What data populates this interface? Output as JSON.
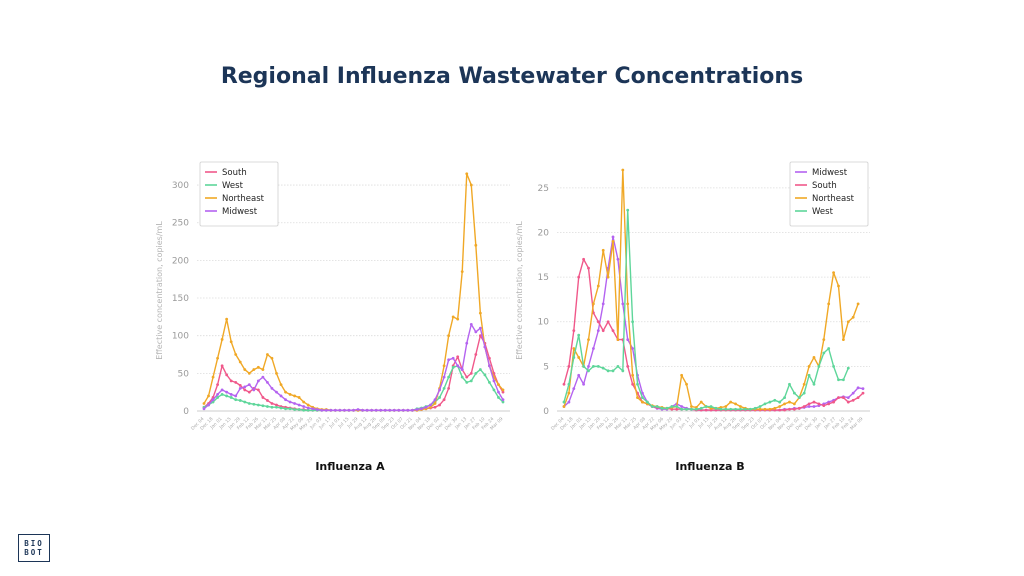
{
  "title": "Regional Influenza Wastewater Concentrations",
  "logo": {
    "line1": "BIO",
    "line2": "BOT"
  },
  "colors": {
    "South": "#f0588a",
    "West": "#5ed69a",
    "Northeast": "#f0a826",
    "Midwest": "#b463f0"
  },
  "chart_data": [
    {
      "type": "line",
      "xlabel": "Influenza A",
      "ylabel": "Effective concentration, copies/mL",
      "ylim": [
        0,
        320
      ],
      "yticks": [
        0,
        50,
        100,
        150,
        200,
        250,
        300
      ],
      "xticks": [
        "Dec 04",
        "Dec 18",
        "Jan 01",
        "Jan 15",
        "Jan 29",
        "Feb 12",
        "Feb 26",
        "Mar 11",
        "Mar 25",
        "Apr 08",
        "Apr 22",
        "May 06",
        "May 20",
        "Jun 03",
        "Jun 17",
        "Jul 01",
        "Jul 15",
        "Jul 29",
        "Aug 12",
        "Aug 26",
        "Sep 09",
        "Sep 23",
        "Oct 07",
        "Oct 21",
        "Nov 04",
        "Nov 18",
        "Dec 02",
        "Dec 16",
        "Dec 30",
        "Jan 13",
        "Jan 27",
        "Feb 10",
        "Feb 24",
        "Mar 09"
      ],
      "legend_position": "top-left",
      "grid": true,
      "series": [
        {
          "name": "South",
          "values": [
            5,
            10,
            18,
            35,
            60,
            48,
            40,
            38,
            34,
            28,
            25,
            30,
            28,
            18,
            14,
            10,
            8,
            6,
            5,
            4,
            3,
            2,
            2,
            1,
            1,
            1,
            1,
            1,
            1,
            1,
            1,
            1,
            1,
            1,
            1,
            1,
            1,
            1,
            1,
            1,
            1,
            1,
            1,
            1,
            1,
            1,
            1,
            1,
            2,
            3,
            4,
            5,
            8,
            15,
            30,
            60,
            72,
            55,
            45,
            50,
            75,
            100,
            90,
            70,
            50,
            35,
            25
          ]
        },
        {
          "name": "West",
          "values": [
            5,
            8,
            12,
            18,
            22,
            20,
            18,
            15,
            14,
            12,
            10,
            9,
            8,
            7,
            6,
            5,
            5,
            4,
            3,
            3,
            2,
            2,
            1,
            1,
            1,
            1,
            1,
            1,
            1,
            1,
            1,
            1,
            1,
            1,
            1,
            1,
            1,
            1,
            1,
            1,
            1,
            1,
            1,
            1,
            1,
            1,
            1,
            3,
            4,
            6,
            8,
            12,
            18,
            30,
            45,
            58,
            60,
            45,
            38,
            40,
            50,
            55,
            48,
            38,
            28,
            18,
            12
          ]
        },
        {
          "name": "Northeast",
          "values": [
            10,
            20,
            45,
            70,
            95,
            122,
            92,
            75,
            65,
            55,
            50,
            55,
            58,
            55,
            75,
            70,
            50,
            35,
            25,
            22,
            20,
            18,
            12,
            8,
            5,
            3,
            2,
            2,
            1,
            1,
            1,
            1,
            1,
            1,
            1,
            1,
            1,
            1,
            1,
            1,
            1,
            1,
            1,
            1,
            1,
            1,
            1,
            1,
            2,
            3,
            5,
            10,
            30,
            60,
            100,
            125,
            122,
            185,
            315,
            300,
            220,
            130,
            85,
            60,
            45,
            35,
            28
          ]
        },
        {
          "name": "Midwest",
          "values": [
            3,
            8,
            15,
            22,
            28,
            25,
            22,
            20,
            30,
            32,
            35,
            28,
            40,
            45,
            38,
            30,
            25,
            20,
            15,
            12,
            10,
            8,
            6,
            4,
            3,
            2,
            1,
            1,
            1,
            1,
            1,
            1,
            1,
            1,
            2,
            1,
            1,
            1,
            1,
            1,
            1,
            1,
            1,
            1,
            1,
            1,
            1,
            2,
            3,
            5,
            8,
            15,
            28,
            45,
            68,
            70,
            60,
            55,
            90,
            115,
            105,
            110,
            85,
            60,
            40,
            25,
            15
          ]
        }
      ]
    },
    {
      "type": "line",
      "xlabel": "Influenza B",
      "ylabel": "Effective concentration, copies/mL",
      "ylim": [
        0,
        27
      ],
      "yticks": [
        0,
        5,
        10,
        15,
        20,
        25
      ],
      "xticks": [
        "Dec 04",
        "Dec 18",
        "Jan 01",
        "Jan 15",
        "Jan 29",
        "Feb 12",
        "Feb 26",
        "Mar 11",
        "Mar 25",
        "Apr 08",
        "Apr 22",
        "May 06",
        "May 20",
        "Jun 03",
        "Jun 17",
        "Jul 01",
        "Jul 15",
        "Jul 29",
        "Aug 12",
        "Aug 26",
        "Sep 09",
        "Sep 23",
        "Oct 07",
        "Oct 21",
        "Nov 04",
        "Nov 18",
        "Dec 02",
        "Dec 16",
        "Dec 30",
        "Jan 13",
        "Jan 27",
        "Feb 10",
        "Feb 24",
        "Mar 09"
      ],
      "legend_position": "top-right",
      "grid": true,
      "series": [
        {
          "name": "Midwest",
          "values": [
            0.5,
            1,
            2.5,
            4,
            3,
            5,
            7,
            9,
            12,
            16,
            19.5,
            17,
            12,
            8,
            7,
            4,
            2,
            1,
            0.5,
            0.3,
            0.2,
            0.2,
            0.5,
            0.8,
            0.5,
            0.3,
            0.2,
            0.1,
            0.1,
            0.1,
            0.1,
            0.1,
            0.1,
            0.2,
            0.1,
            0.1,
            0.1,
            0.1,
            0.1,
            0.1,
            0.1,
            0.1,
            0.1,
            0.1,
            0.1,
            0.2,
            0.2,
            0.3,
            0.3,
            0.4,
            0.5,
            0.5,
            0.6,
            0.8,
            1,
            1.2,
            1.5,
            1.6,
            1.5,
            2,
            2.6,
            2.5
          ]
        },
        {
          "name": "South",
          "values": [
            3,
            5,
            9,
            15,
            17,
            16,
            11,
            10,
            9,
            10,
            9,
            8,
            8,
            5,
            3,
            2,
            1,
            0.8,
            0.5,
            0.4,
            0.3,
            0.3,
            0.2,
            0.2,
            0.2,
            0.2,
            0.2,
            0.1,
            0.1,
            0.1,
            0.1,
            0.1,
            0.1,
            0.1,
            0.1,
            0.1,
            0.1,
            0.1,
            0.1,
            0.1,
            0.1,
            0.1,
            0.1,
            0.1,
            0.1,
            0.1,
            0.2,
            0.2,
            0.3,
            0.5,
            0.8,
            1,
            0.8,
            0.6,
            0.8,
            1,
            1.5,
            1.5,
            1,
            1.2,
            1.5,
            2
          ]
        },
        {
          "name": "Northeast",
          "values": [
            0.5,
            2,
            7,
            6,
            5,
            8,
            12,
            14,
            18,
            15,
            19,
            8,
            27,
            12,
            4,
            1.5,
            1,
            0.8,
            0.6,
            0.5,
            0.4,
            0.3,
            0.4,
            0.5,
            4,
            3,
            0.5,
            0.4,
            1,
            0.5,
            0.3,
            0.3,
            0.4,
            0.5,
            1,
            0.8,
            0.5,
            0.3,
            0.2,
            0.2,
            0.2,
            0.2,
            0.2,
            0.3,
            0.5,
            0.8,
            1,
            0.8,
            1.5,
            3,
            5,
            6,
            5,
            8,
            12,
            15.5,
            14,
            8,
            10,
            10.5,
            12
          ]
        },
        {
          "name": "West",
          "values": [
            1,
            3,
            6,
            8.5,
            5,
            4.5,
            5,
            5,
            4.8,
            4.5,
            4.5,
            5,
            4.5,
            22.5,
            10,
            3,
            1.5,
            1,
            0.5,
            0.5,
            0.3,
            0.3,
            0.5,
            0.5,
            0.2,
            0.2,
            0.2,
            0.2,
            0.3,
            0.5,
            0.5,
            0.3,
            0.2,
            0.2,
            0.2,
            0.2,
            0.2,
            0.2,
            0.2,
            0.3,
            0.5,
            0.8,
            1,
            1.2,
            1,
            1.5,
            3,
            2,
            1.5,
            2,
            4,
            3,
            5,
            6.5,
            7,
            5,
            3.5,
            3.5,
            4.8
          ]
        }
      ]
    }
  ]
}
